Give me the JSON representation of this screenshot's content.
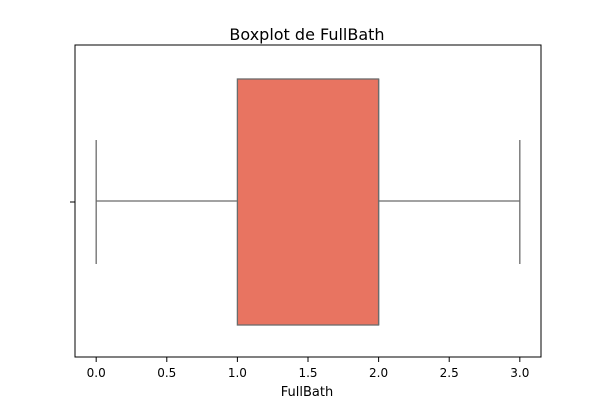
{
  "chart_data": {
    "type": "boxplot",
    "title": "Boxplot de FullBath",
    "xlabel": "FullBath",
    "ylabel": "",
    "orientation": "horizontal",
    "xlim": [
      -0.15,
      3.15
    ],
    "xticks": [
      0.0,
      0.5,
      1.0,
      1.5,
      2.0,
      2.5,
      3.0
    ],
    "xtick_labels": [
      "0.0",
      "0.5",
      "1.0",
      "1.5",
      "2.0",
      "2.5",
      "3.0"
    ],
    "box": {
      "whisker_low": 0.0,
      "q1": 1.0,
      "median": 2.0,
      "q3": 2.0,
      "whisker_high": 3.0
    },
    "grid": false,
    "colors": {
      "box_fill": "#e87461",
      "line": "#6b6b6b"
    }
  }
}
